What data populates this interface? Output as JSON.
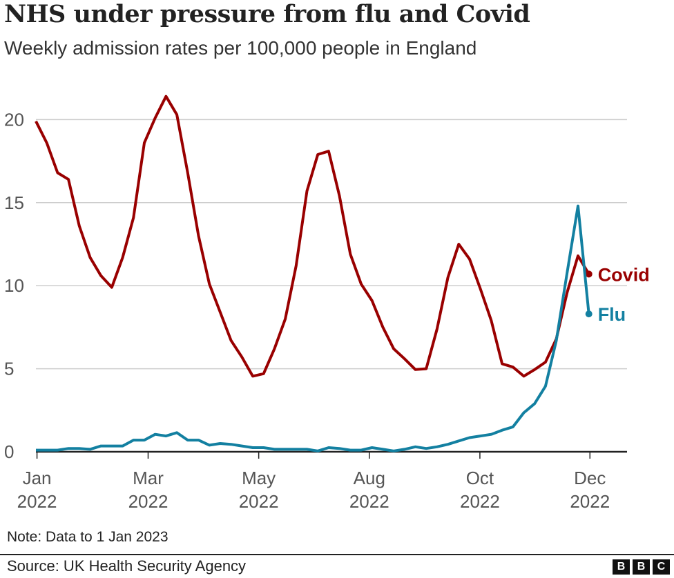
{
  "header": {
    "title": "NHS under pressure from flu and Covid",
    "subtitle": "Weekly admission rates per 100,000 people in England"
  },
  "footer": {
    "note": "Note: Data to 1 Jan 2023",
    "source": "Source: UK Health Security Agency",
    "logo": "BBC"
  },
  "chart_data": {
    "type": "line",
    "title": "NHS under pressure from flu and Covid",
    "subtitle": "Weekly admission rates per 100,000 people in England",
    "ylim": [
      0,
      22
    ],
    "yticks": [
      0,
      5,
      10,
      15,
      20
    ],
    "xticks": [
      {
        "l1": "Jan",
        "l2": "2022"
      },
      {
        "l1": "Mar",
        "l2": "2022"
      },
      {
        "l1": "May",
        "l2": "2022"
      },
      {
        "l1": "Aug",
        "l2": "2022"
      },
      {
        "l1": "Oct",
        "l2": "2022"
      },
      {
        "l1": "Dec",
        "l2": "2022"
      }
    ],
    "grid": true,
    "legend": "inline-end-labels",
    "series": [
      {
        "name": "Covid",
        "color": "#990000",
        "values": [
          19.9,
          18.6,
          16.8,
          16.4,
          13.6,
          11.7,
          10.6,
          9.9,
          11.7,
          14.1,
          18.6,
          20.1,
          21.4,
          20.3,
          16.8,
          13.0,
          10.1,
          8.4,
          6.7,
          5.7,
          4.55,
          4.7,
          6.2,
          8.0,
          11.2,
          15.7,
          17.9,
          18.1,
          15.4,
          11.9,
          10.1,
          9.1,
          7.5,
          6.2,
          5.6,
          4.95,
          5.0,
          7.4,
          10.5,
          12.5,
          11.6,
          9.8,
          7.9,
          5.3,
          5.1,
          4.55,
          4.95,
          5.4,
          6.8,
          9.6,
          11.8,
          10.7
        ]
      },
      {
        "name": "Flu",
        "color": "#1380A1",
        "values": [
          0.1,
          0.1,
          0.1,
          0.2,
          0.2,
          0.15,
          0.35,
          0.35,
          0.35,
          0.7,
          0.7,
          1.05,
          0.95,
          1.15,
          0.7,
          0.7,
          0.4,
          0.5,
          0.45,
          0.35,
          0.25,
          0.25,
          0.15,
          0.15,
          0.15,
          0.15,
          0.05,
          0.25,
          0.2,
          0.1,
          0.1,
          0.25,
          0.15,
          0.05,
          0.15,
          0.3,
          0.2,
          0.3,
          0.45,
          0.65,
          0.85,
          0.95,
          1.05,
          1.3,
          1.5,
          2.35,
          2.9,
          3.95,
          6.7,
          10.8,
          14.8,
          8.3
        ]
      }
    ]
  }
}
